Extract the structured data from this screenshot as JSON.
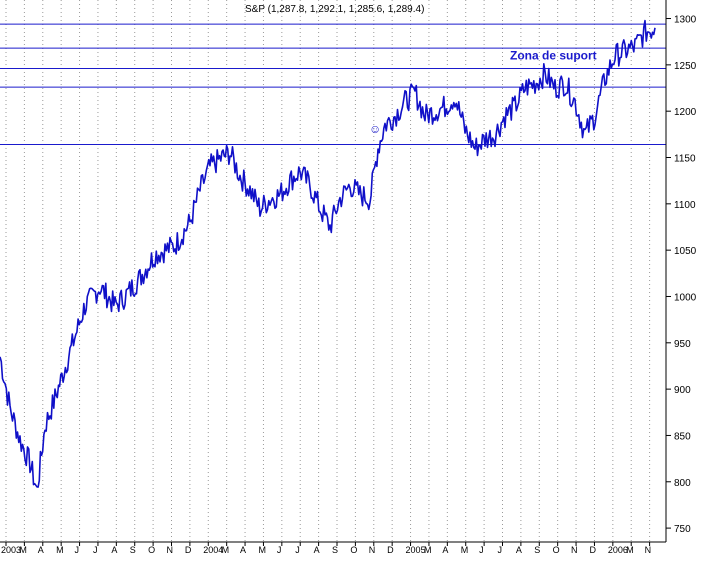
{
  "chart_data": {
    "type": "line",
    "title": "S&P (1,287.8, 1,292.1, 1,285.6, 1,289.4)",
    "xlabel": "",
    "ylabel": "",
    "ylim": [
      735,
      1320
    ],
    "y_ticks": [
      750,
      800,
      850,
      900,
      950,
      1000,
      1050,
      1100,
      1150,
      1200,
      1250,
      1300
    ],
    "x_ticks": [
      "2003",
      "M",
      "A",
      "M",
      "J",
      "J",
      "A",
      "S",
      "O",
      "N",
      "D",
      "2004",
      "M",
      "A",
      "M",
      "J",
      "J",
      "A",
      "S",
      "O",
      "N",
      "D",
      "2005",
      "M",
      "A",
      "M",
      "J",
      "J",
      "A",
      "S",
      "O",
      "N",
      "D",
      "2006",
      "M",
      "N"
    ],
    "grid": true,
    "series": [
      {
        "x": [
          0,
          10,
          20,
          30,
          37,
          45,
          55,
          70,
          85,
          100,
          115,
          125,
          140,
          155,
          165,
          175,
          190,
          200,
          210,
          222,
          230,
          240,
          250,
          260,
          270,
          280,
          290,
          300,
          310,
          320,
          330,
          340,
          350,
          360,
          370,
          378,
          385,
          395,
          405,
          415,
          425,
          435,
          445,
          455,
          465,
          475,
          485,
          495,
          505,
          515,
          525,
          535,
          545,
          555,
          565,
          575,
          585,
          595,
          605,
          615,
          625,
          635,
          645,
          655
        ],
        "values": [
          935,
          880,
          845,
          820,
          790,
          860,
          890,
          940,
          990,
          1010,
          990,
          1000,
          1020,
          1045,
          1050,
          1055,
          1080,
          1115,
          1140,
          1150,
          1155,
          1130,
          1115,
          1095,
          1105,
          1110,
          1125,
          1135,
          1120,
          1095,
          1075,
          1105,
          1120,
          1110,
          1105,
          1160,
          1185,
          1195,
          1210,
          1220,
          1195,
          1200,
          1205,
          1215,
          1180,
          1160,
          1170,
          1175,
          1195,
          1205,
          1225,
          1230,
          1240,
          1225,
          1230,
          1210,
          1175,
          1195,
          1235,
          1260,
          1265,
          1270,
          1285,
          1290
        ],
        "color": "#1010c8"
      }
    ],
    "reference_lines": [
      {
        "y": 1294,
        "color": "#1a1acc"
      },
      {
        "y": 1268,
        "color": "#1a1acc"
      },
      {
        "y": 1246,
        "color": "#1a1acc"
      },
      {
        "y": 1226,
        "color": "#1a1acc"
      },
      {
        "y": 1164,
        "color": "#1a1acc"
      }
    ],
    "annotations": [
      {
        "text": "Zona de suport",
        "y": 1260,
        "x": 580
      },
      {
        "text": "☺",
        "y": 1181,
        "x": 375
      }
    ]
  }
}
